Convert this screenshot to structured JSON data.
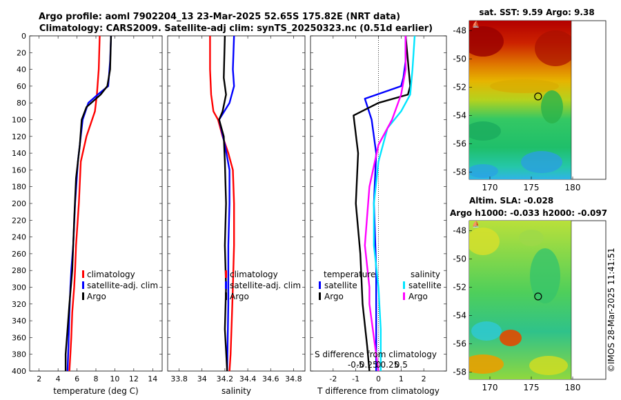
{
  "header": {
    "title_line1": "Argo profile: aoml 7902204_13 23-Mar-2025 52.65S 175.82E (NRT data)",
    "title_line2": "Climatology: CARS2009. Satellite-adj clim: synTS_20250323.nc (0.51d earlier)"
  },
  "colors": {
    "climatology": "#ff0000",
    "satellite": "#0000ff",
    "argo": "#000000",
    "satellite_salinity": "#00e5ff",
    "argo_salinity": "#ff00ff"
  },
  "chart_data": [
    {
      "type": "line",
      "name": "temperature-profile",
      "xlabel": "temperature (deg C)",
      "ylabel": "",
      "xlim": [
        1,
        15
      ],
      "ylim": [
        400,
        0
      ],
      "xticks": [
        "2",
        "4",
        "6",
        "8",
        "10",
        "12",
        "14"
      ],
      "yticks": [
        "0",
        "20",
        "40",
        "60",
        "80",
        "100",
        "120",
        "140",
        "160",
        "180",
        "200",
        "220",
        "240",
        "260",
        "280",
        "300",
        "320",
        "340",
        "360",
        "380",
        "400"
      ],
      "legend": [
        "climatology",
        "satellite-adj. clim",
        "Argo"
      ],
      "series": [
        {
          "name": "climatology",
          "color": "red",
          "x": [
            8.4,
            8.3,
            8.1,
            7.9,
            7.6,
            7.0,
            6.4,
            6.2,
            5.9,
            5.8,
            5.7,
            5.5,
            5.4,
            5.3,
            5.2
          ],
          "y": [
            0,
            40,
            70,
            90,
            100,
            120,
            150,
            200,
            250,
            280,
            300,
            330,
            360,
            380,
            400
          ]
        },
        {
          "name": "satellite-adj. clim",
          "color": "blue",
          "x": [
            9.6,
            9.5,
            9.3,
            8.2,
            7.2,
            6.6,
            6.1,
            5.8,
            5.6,
            5.4,
            5.3,
            5.2,
            5.1,
            5.0
          ],
          "y": [
            0,
            30,
            60,
            70,
            80,
            100,
            150,
            200,
            250,
            280,
            300,
            330,
            370,
            400
          ]
        },
        {
          "name": "Argo",
          "color": "black",
          "x": [
            9.6,
            9.5,
            9.2,
            8.5,
            7.0,
            6.5,
            6.3,
            5.9,
            5.7,
            5.5,
            5.2,
            5.0,
            4.8,
            4.8
          ],
          "y": [
            0,
            40,
            60,
            70,
            85,
            100,
            130,
            170,
            220,
            280,
            320,
            350,
            380,
            400
          ]
        }
      ]
    },
    {
      "type": "line",
      "name": "salinity-profile",
      "xlabel": "salinity",
      "ylabel": "",
      "xlim": [
        33.7,
        34.9
      ],
      "ylim": [
        400,
        0
      ],
      "xticks": [
        "33.8",
        "34",
        "34.2",
        "34.4",
        "34.6",
        "34.8"
      ],
      "legend": [
        "climatology",
        "satellite-adj. clim",
        "Argo"
      ],
      "series": [
        {
          "name": "climatology",
          "color": "red",
          "x": [
            34.07,
            34.07,
            34.08,
            34.1,
            34.14,
            34.18,
            34.23,
            34.27,
            34.28,
            34.28,
            34.27,
            34.26,
            34.25,
            34.24
          ],
          "y": [
            0,
            40,
            70,
            90,
            100,
            120,
            140,
            160,
            200,
            250,
            300,
            340,
            380,
            400
          ]
        },
        {
          "name": "satellite-adj. clim",
          "color": "blue",
          "x": [
            34.28,
            34.27,
            34.28,
            34.24,
            34.15,
            34.2,
            34.24,
            34.24,
            34.23,
            34.23,
            34.22
          ],
          "y": [
            0,
            40,
            60,
            80,
            100,
            130,
            160,
            200,
            250,
            320,
            400
          ]
        },
        {
          "name": "Argo",
          "color": "black",
          "x": [
            34.2,
            34.19,
            34.21,
            34.18,
            34.15,
            34.19,
            34.2,
            34.21,
            34.2,
            34.21,
            34.2,
            34.22
          ],
          "y": [
            0,
            50,
            70,
            90,
            100,
            120,
            150,
            200,
            250,
            300,
            350,
            400
          ]
        }
      ]
    },
    {
      "type": "line",
      "name": "difference-profile",
      "xlabel": "T difference from climatology",
      "xlabel_top": "S difference from climatology",
      "xlim": [
        -3,
        3
      ],
      "ylim": [
        400,
        0
      ],
      "xticks": [
        "-2",
        "-1",
        "0",
        "1",
        "2"
      ],
      "xticks_top": [
        "-0.5",
        "-0.25",
        "0",
        "0.25",
        "0.5"
      ],
      "legend_temperature": [
        "temperature",
        "satellite",
        "Argo"
      ],
      "legend_salinity": [
        "salinity",
        "satellite",
        "Argo"
      ],
      "series": [
        {
          "name": "T satellite",
          "color": "blue",
          "x": [
            1.2,
            1.2,
            1.1,
            1.0,
            -0.6,
            -0.3,
            -0.1,
            -0.2,
            -0.1,
            -0.1,
            -0.1
          ],
          "y": [
            0,
            30,
            50,
            60,
            75,
            100,
            140,
            200,
            280,
            340,
            400
          ]
        },
        {
          "name": "T Argo",
          "color": "black",
          "x": [
            1.2,
            1.3,
            1.4,
            1.3,
            0.0,
            -1.1,
            -0.9,
            -1.0,
            -0.8,
            -0.7,
            -0.5,
            -0.4
          ],
          "y": [
            0,
            30,
            60,
            70,
            80,
            95,
            140,
            200,
            260,
            320,
            370,
            400
          ]
        },
        {
          "name": "S satellite",
          "color": "cyan",
          "x": [
            0.8,
            0.75,
            0.7,
            0.5,
            0.2,
            0.0,
            -0.1,
            -0.1,
            0.0,
            0.05,
            0.05
          ],
          "y": [
            0,
            40,
            70,
            90,
            110,
            150,
            200,
            250,
            300,
            350,
            400
          ]
        },
        {
          "name": "S Argo",
          "color": "magenta",
          "x": [
            0.6,
            0.6,
            0.5,
            0.3,
            0.0,
            -0.2,
            -0.3,
            -0.2,
            -0.2,
            -0.1,
            0.0
          ],
          "y": [
            0,
            40,
            70,
            100,
            130,
            180,
            250,
            300,
            320,
            360,
            400
          ]
        }
      ]
    }
  ],
  "maps": [
    {
      "title": "sat. SST: 9.59 Argo: 9.38",
      "xticks": [
        "170",
        "175",
        "180"
      ],
      "yticks": [
        "-48",
        "-50",
        "-52",
        "-54",
        "-56",
        "-58"
      ],
      "xlim": [
        167.5,
        184
      ],
      "ylim": [
        -58.5,
        -47.3
      ],
      "float_lon": 175.82,
      "float_lat": -52.65
    },
    {
      "title_line1": "Altim. SLA: -0.028",
      "title_line2": "Argo h1000: -0.033 h2000: -0.097",
      "xticks": [
        "170",
        "175",
        "180"
      ],
      "yticks": [
        "-48",
        "-50",
        "-52",
        "-54",
        "-56",
        "-58"
      ],
      "xlim": [
        167.5,
        184
      ],
      "ylim": [
        -58.5,
        -47.3
      ],
      "float_lon": 175.82,
      "float_lat": -52.65
    }
  ],
  "watermark": "©IMOS 28-Mar-2025 11:41:51"
}
